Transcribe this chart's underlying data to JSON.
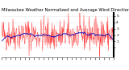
{
  "title": "Milwaukee Weather Normalized and Average Wind Direction (Last 24 Hours)",
  "background_color": "#ffffff",
  "plot_bg_color": "#ffffff",
  "grid_color": "#c8c8c8",
  "red_color": "#ff0000",
  "blue_color": "#0000bb",
  "n_points": 300,
  "ylim": [
    -1.5,
    5.5
  ],
  "ytick_positions": [
    0,
    1,
    2,
    3,
    4,
    5
  ],
  "ytick_labels": [
    "",
    "1",
    "2",
    "3",
    "4",
    "5"
  ],
  "title_fontsize": 3.8,
  "tick_fontsize": 3.2,
  "seed": 42
}
